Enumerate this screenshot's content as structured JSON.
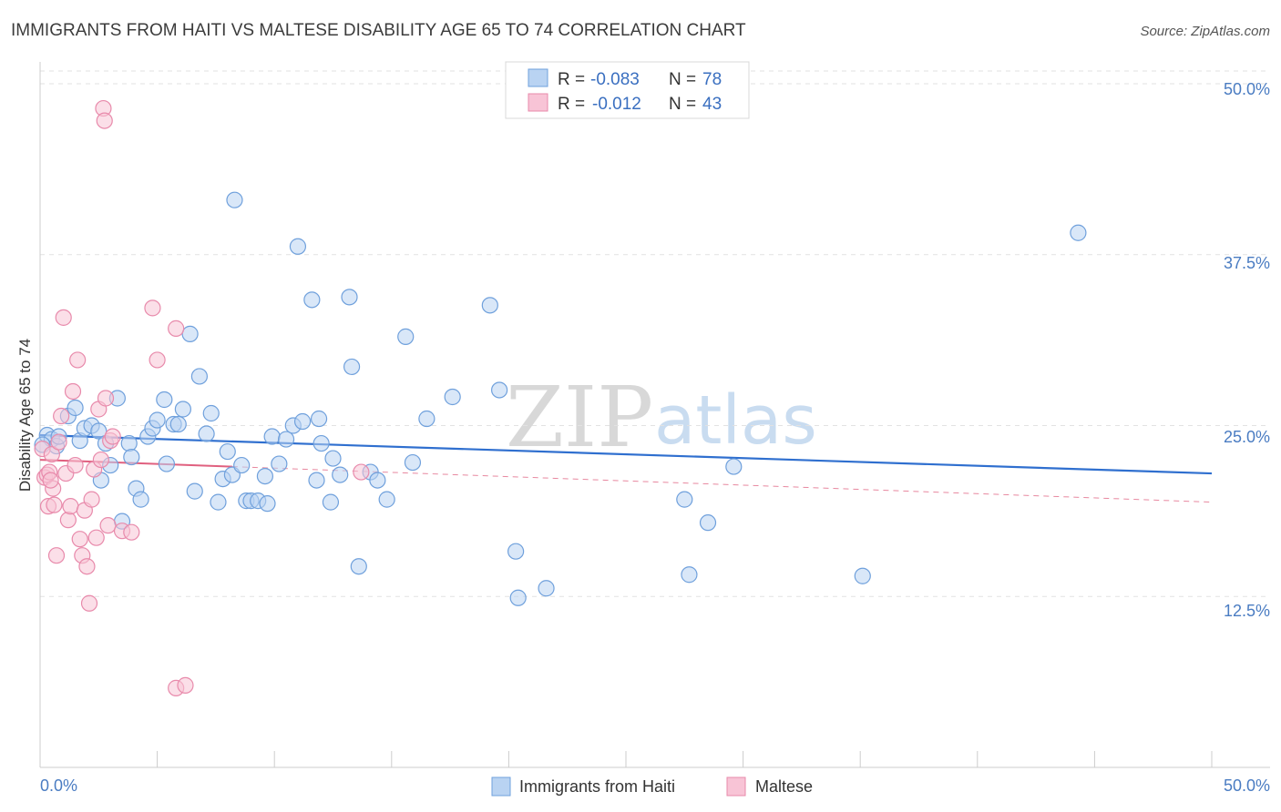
{
  "chart_data": {
    "type": "scatter",
    "title": "IMMIGRANTS FROM HAITI VS MALTESE DISABILITY AGE 65 TO 74 CORRELATION CHART",
    "source": "Source: ZipAtlas.com",
    "ylabel": "Disability Age 65 to 74",
    "xlim": [
      0,
      50
    ],
    "ylim": [
      0,
      52
    ],
    "x_tick_labels": {
      "left": "0.0%",
      "right": "50.0%"
    },
    "y_ticks": [
      {
        "value": 12.5,
        "label": "12.5%"
      },
      {
        "value": 25.0,
        "label": "25.0%"
      },
      {
        "value": 37.5,
        "label": "37.5%"
      },
      {
        "value": 50.0,
        "label": "50.0%"
      }
    ],
    "legend": [
      {
        "r_label": "R = ",
        "r_value": "-0.083",
        "n_label": "N = ",
        "n_value": "78"
      },
      {
        "r_label": "R = ",
        "r_value": "-0.012",
        "n_label": "N = ",
        "n_value": "43"
      }
    ],
    "watermark": {
      "zip": "ZIP",
      "atlas": "atlas"
    },
    "colors": {
      "blue_fill": "#b9d3f2",
      "blue_stroke": "#6fa0dc",
      "blue_line": "#2f6fcf",
      "pink_fill": "#f8c4d6",
      "pink_stroke": "#e88aab",
      "pink_line": "#e0607f",
      "grid": "#e2e2e2",
      "axis": "#cccccc"
    },
    "series": [
      {
        "name": "Immigrants from Haiti",
        "color": "blue",
        "trend": {
          "x0": 0,
          "y0": 24.3,
          "x1": 50,
          "y1": 21.5
        },
        "points": [
          [
            0.3,
            24.3
          ],
          [
            0.5,
            24.0
          ],
          [
            0.7,
            23.5
          ],
          [
            0.8,
            24.2
          ],
          [
            1.2,
            25.7
          ],
          [
            1.5,
            26.3
          ],
          [
            1.7,
            23.9
          ],
          [
            1.9,
            24.8
          ],
          [
            2.2,
            25.0
          ],
          [
            2.5,
            24.6
          ],
          [
            2.6,
            21.0
          ],
          [
            2.8,
            23.7
          ],
          [
            3.0,
            22.1
          ],
          [
            3.3,
            27.0
          ],
          [
            3.5,
            18.0
          ],
          [
            3.8,
            23.7
          ],
          [
            3.9,
            22.7
          ],
          [
            4.1,
            20.4
          ],
          [
            4.3,
            19.6
          ],
          [
            4.6,
            24.2
          ],
          [
            4.8,
            24.8
          ],
          [
            5.0,
            25.4
          ],
          [
            5.3,
            26.9
          ],
          [
            5.4,
            22.2
          ],
          [
            5.7,
            25.1
          ],
          [
            5.9,
            25.1
          ],
          [
            6.1,
            26.2
          ],
          [
            6.4,
            31.7
          ],
          [
            6.6,
            20.2
          ],
          [
            6.8,
            28.6
          ],
          [
            7.1,
            24.4
          ],
          [
            7.3,
            25.9
          ],
          [
            7.6,
            19.4
          ],
          [
            7.8,
            21.1
          ],
          [
            8.0,
            23.1
          ],
          [
            8.2,
            21.4
          ],
          [
            8.3,
            41.5
          ],
          [
            8.6,
            22.1
          ],
          [
            8.8,
            19.5
          ],
          [
            9.0,
            19.5
          ],
          [
            9.3,
            19.5
          ],
          [
            9.6,
            21.3
          ],
          [
            9.7,
            19.3
          ],
          [
            9.9,
            24.2
          ],
          [
            10.2,
            22.2
          ],
          [
            10.5,
            24.0
          ],
          [
            10.8,
            25.0
          ],
          [
            11.0,
            38.1
          ],
          [
            11.2,
            25.3
          ],
          [
            11.6,
            34.2
          ],
          [
            11.8,
            21.0
          ],
          [
            11.9,
            25.5
          ],
          [
            12.0,
            23.7
          ],
          [
            12.4,
            19.4
          ],
          [
            12.5,
            22.6
          ],
          [
            12.8,
            21.4
          ],
          [
            13.2,
            34.4
          ],
          [
            13.3,
            29.3
          ],
          [
            13.6,
            14.7
          ],
          [
            14.1,
            21.6
          ],
          [
            14.4,
            21.0
          ],
          [
            14.8,
            19.6
          ],
          [
            15.6,
            31.5
          ],
          [
            15.9,
            22.3
          ],
          [
            16.5,
            25.5
          ],
          [
            17.6,
            27.1
          ],
          [
            19.2,
            33.8
          ],
          [
            19.6,
            27.6
          ],
          [
            20.3,
            15.8
          ],
          [
            20.4,
            12.4
          ],
          [
            21.6,
            13.1
          ],
          [
            27.5,
            19.6
          ],
          [
            27.7,
            14.1
          ],
          [
            28.5,
            17.9
          ],
          [
            29.6,
            22.0
          ],
          [
            35.1,
            14.0
          ],
          [
            44.3,
            39.1
          ],
          [
            0.1,
            23.6
          ]
        ]
      },
      {
        "name": "Maltese",
        "color": "pink",
        "trend": {
          "x0": 0,
          "y0": 22.5,
          "x1": 8.2,
          "y1": 22.0
        },
        "trend_dashed": {
          "x0": 8.2,
          "y0": 22.0,
          "x1": 50,
          "y1": 19.4
        },
        "points": [
          [
            0.1,
            23.3
          ],
          [
            0.2,
            21.2
          ],
          [
            0.3,
            21.4
          ],
          [
            0.35,
            19.1
          ],
          [
            0.4,
            21.6
          ],
          [
            0.5,
            22.9
          ],
          [
            0.55,
            20.4
          ],
          [
            0.6,
            19.2
          ],
          [
            0.7,
            15.5
          ],
          [
            0.8,
            23.8
          ],
          [
            0.9,
            25.7
          ],
          [
            1.0,
            32.9
          ],
          [
            1.1,
            21.5
          ],
          [
            1.2,
            18.1
          ],
          [
            1.3,
            19.1
          ],
          [
            1.4,
            27.5
          ],
          [
            1.5,
            22.1
          ],
          [
            1.6,
            29.8
          ],
          [
            1.7,
            16.7
          ],
          [
            1.8,
            15.5
          ],
          [
            1.9,
            18.8
          ],
          [
            2.0,
            14.7
          ],
          [
            2.1,
            12.0
          ],
          [
            2.2,
            19.6
          ],
          [
            2.3,
            21.8
          ],
          [
            2.4,
            16.8
          ],
          [
            2.5,
            26.2
          ],
          [
            2.6,
            22.5
          ],
          [
            2.7,
            48.2
          ],
          [
            2.75,
            47.3
          ],
          [
            2.8,
            27.0
          ],
          [
            2.9,
            17.7
          ],
          [
            3.0,
            23.9
          ],
          [
            3.1,
            24.2
          ],
          [
            3.5,
            17.3
          ],
          [
            3.9,
            17.2
          ],
          [
            4.8,
            33.6
          ],
          [
            5.0,
            29.8
          ],
          [
            5.8,
            32.1
          ],
          [
            5.8,
            5.8
          ],
          [
            6.2,
            6.0
          ],
          [
            13.7,
            21.6
          ],
          [
            0.45,
            21.0
          ]
        ]
      }
    ]
  },
  "bottom_legend": [
    {
      "label": "Immigrants from Haiti",
      "color": "blue"
    },
    {
      "label": "Maltese",
      "color": "pink"
    }
  ]
}
